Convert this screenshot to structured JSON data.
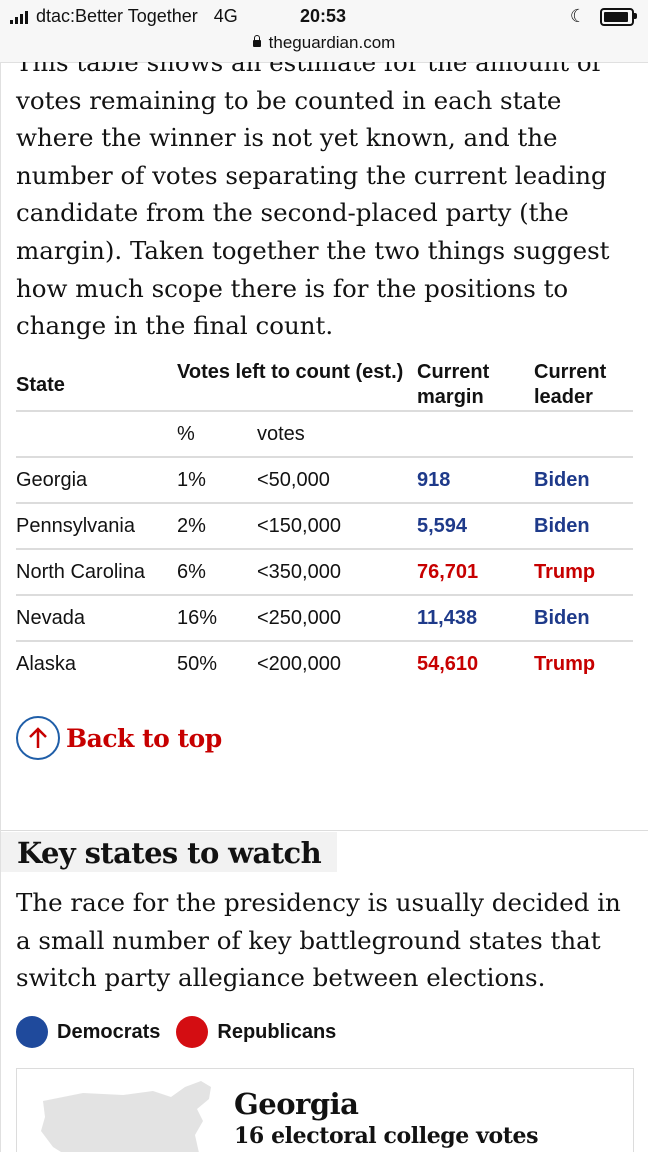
{
  "status_bar": {
    "carrier": "dtac:Better Together",
    "network": "4G",
    "time": "20:53",
    "url": "theguardian.com"
  },
  "article": {
    "intro": "This table shows an estimate for the amount of votes remaining to be counted in each state where the winner is not yet known, and the number of votes separating the current leading candidate from the second-placed party (the margin). Taken together the two things suggest how much scope there is for the positions to change in the final count.",
    "table": {
      "headers": {
        "state": "State",
        "votes_left": "Votes left to count (est.)",
        "margin": "Current margin",
        "leader": "Current leader"
      },
      "subheaders": {
        "percent": "%",
        "votes": "votes"
      },
      "rows": [
        {
          "state": "Georgia",
          "percent": "1%",
          "votes": "<50,000",
          "margin": "918",
          "leader": "Biden"
        },
        {
          "state": "Pennsylvania",
          "percent": "2%",
          "votes": "<150,000",
          "margin": "5,594",
          "leader": "Biden"
        },
        {
          "state": "North Carolina",
          "percent": "6%",
          "votes": "<350,000",
          "margin": "76,701",
          "leader": "Trump"
        },
        {
          "state": "Nevada",
          "percent": "16%",
          "votes": "<250,000",
          "margin": "11,438",
          "leader": "Biden"
        },
        {
          "state": "Alaska",
          "percent": "50%",
          "votes": "<200,000",
          "margin": "54,610",
          "leader": "Trump"
        }
      ]
    },
    "back_to_top": "Back to top",
    "section_title": "Key states to watch",
    "section_text": "The race for the presidency is usually decided in a small number of key battleground states that switch party allegiance between elections.",
    "legend": [
      {
        "label": "Democrats",
        "color": "#1f4a9c"
      },
      {
        "label": "Republicans",
        "color": "#d40d12"
      }
    ],
    "state_card": {
      "title": "Georgia",
      "subtitle": "16 electoral college votes"
    }
  },
  "colors": {
    "biden": "#1e3a8a",
    "trump": "#c70000"
  }
}
